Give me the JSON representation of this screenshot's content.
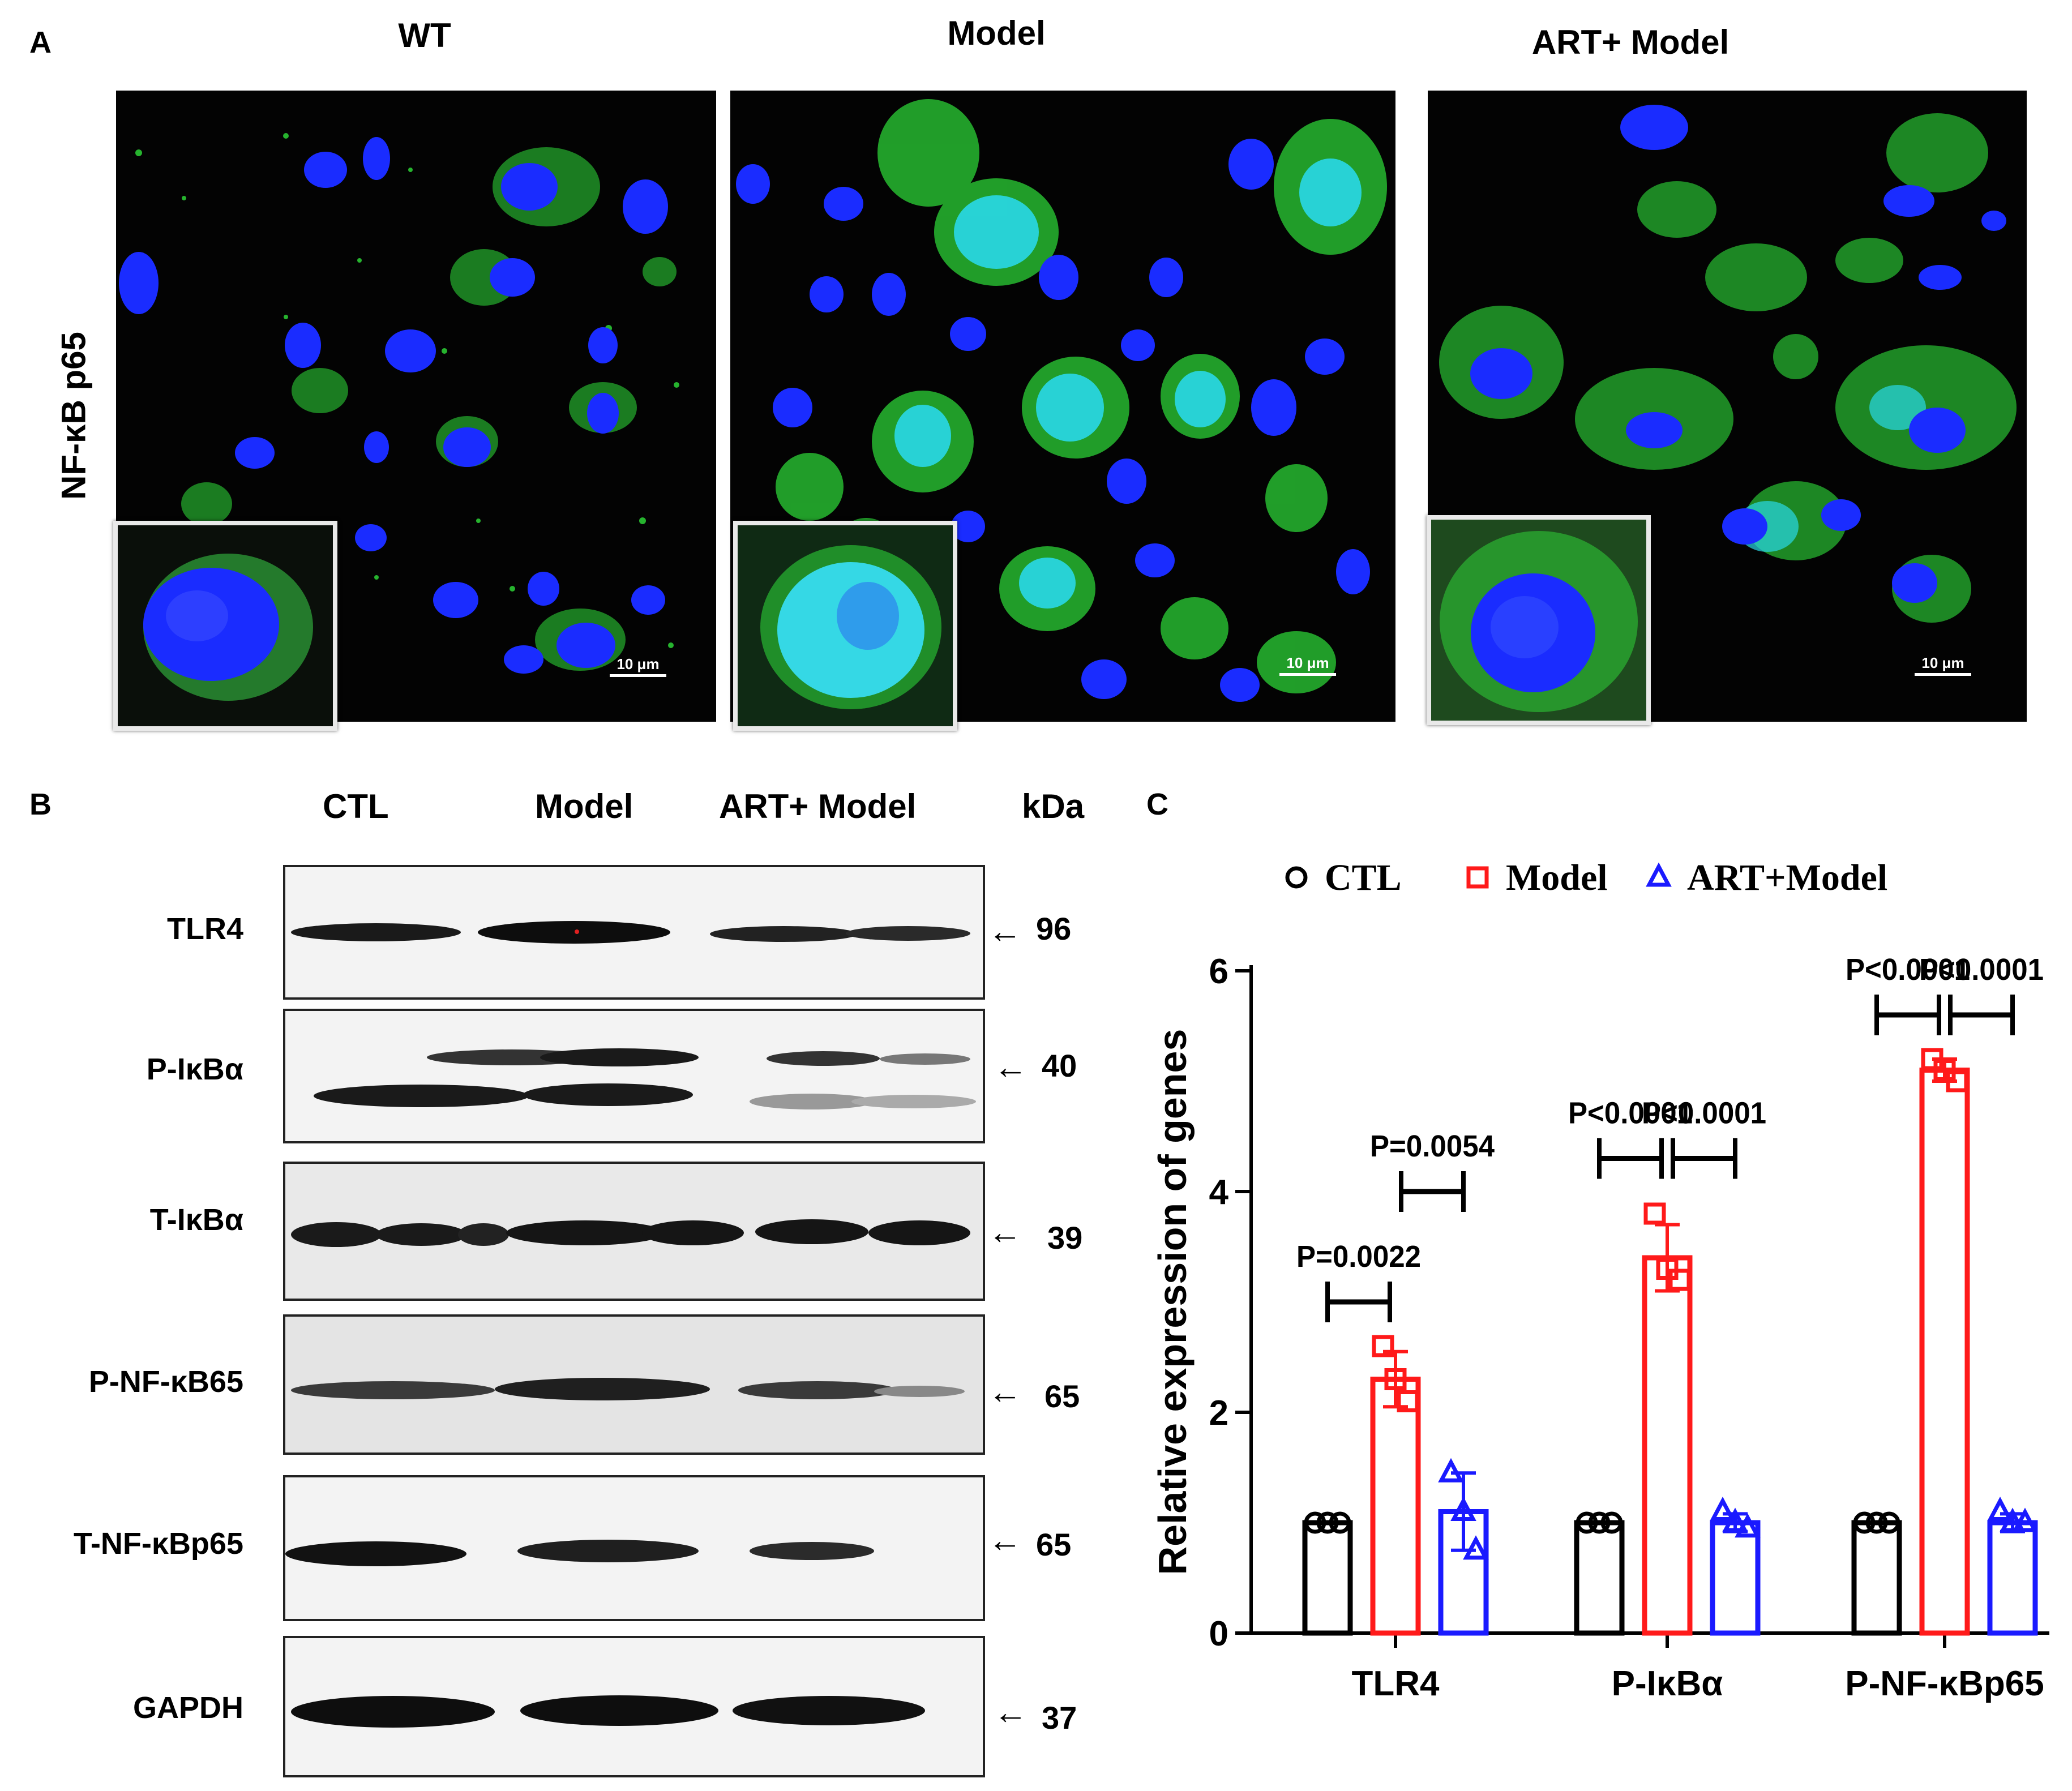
{
  "panels": {
    "a": {
      "letter": "A",
      "columns": [
        "WT",
        "Model",
        "ART+ Model"
      ],
      "row_label": "NF-κB p65",
      "scale_text": "10 μm"
    },
    "b": {
      "letter": "B",
      "lanes": [
        "CTL",
        "Model",
        "ART+ Model"
      ],
      "kda_header": "kDa",
      "rows": [
        {
          "label": "TLR4",
          "kda": "96"
        },
        {
          "label": "P-IκBα",
          "kda": "40"
        },
        {
          "label": "T-IκBα",
          "kda": "39"
        },
        {
          "label": "P-NF-κB65",
          "kda": "65"
        },
        {
          "label": "T-NF-κBp65",
          "kda": "65"
        },
        {
          "label": "GAPDH",
          "kda": "37"
        }
      ]
    },
    "c": {
      "letter": "C"
    }
  },
  "colors": {
    "ctl": "#000000",
    "model": "#ff1a1a",
    "art": "#1a1aff",
    "dapi": "#1a2cff",
    "p65": "#2fe03a"
  },
  "chart_data": {
    "type": "bar",
    "ylabel": "Relative expression of genes",
    "xlabel": "",
    "ylim": [
      0,
      6
    ],
    "yticks": [
      "0",
      "2",
      "4",
      "6"
    ],
    "categories": [
      "TLR4",
      "P-IκBα",
      "P-NF-κBp65"
    ],
    "legend_position": "top",
    "series": [
      {
        "name": "CTL",
        "color": "#000000",
        "marker": "circle",
        "values": [
          1.0,
          1.0,
          1.0
        ],
        "points": [
          [
            1.0,
            1.0,
            1.0
          ],
          [
            1.0,
            1.0,
            1.0
          ],
          [
            1.0,
            1.0,
            1.0
          ]
        ],
        "sd": [
          0,
          0,
          0
        ]
      },
      {
        "name": "Model",
        "color": "#ff1a1a",
        "marker": "square",
        "values": [
          2.3,
          3.4,
          5.1
        ],
        "points": [
          [
            2.6,
            2.3,
            2.1
          ],
          [
            3.8,
            3.3,
            3.2
          ],
          [
            5.2,
            5.1,
            5.0
          ]
        ],
        "sd": [
          0.25,
          0.3,
          0.1
        ]
      },
      {
        "name": "ART+Model",
        "color": "#1a1aff",
        "marker": "triangle",
        "values": [
          1.1,
          1.0,
          1.0
        ],
        "points": [
          [
            1.45,
            1.1,
            0.75
          ],
          [
            1.1,
            1.0,
            0.95
          ],
          [
            1.1,
            1.0,
            1.0
          ]
        ],
        "sd": [
          0.35,
          0.08,
          0.08
        ]
      }
    ],
    "annotations": [
      {
        "category": "TLR4",
        "from": "CTL",
        "to": "Model",
        "text": "P=0.0022",
        "y": 3.0
      },
      {
        "category": "TLR4",
        "from": "Model",
        "to": "ART+Model",
        "text": "P=0.0054",
        "y": 4.0
      },
      {
        "category": "P-IκBα",
        "from": "CTL",
        "to": "Model",
        "text": "P<0.0001",
        "y": 4.3
      },
      {
        "category": "P-IκBα",
        "from": "Model",
        "to": "ART+Model",
        "text": "P<0.0001",
        "y": 4.3
      },
      {
        "category": "P-NF-κBp65",
        "from": "CTL",
        "to": "Model",
        "text": "P<0.0001",
        "y": 5.6
      },
      {
        "category": "P-NF-κBp65",
        "from": "Model",
        "to": "ART+Model",
        "text": "P<0.0001",
        "y": 5.6
      }
    ]
  }
}
